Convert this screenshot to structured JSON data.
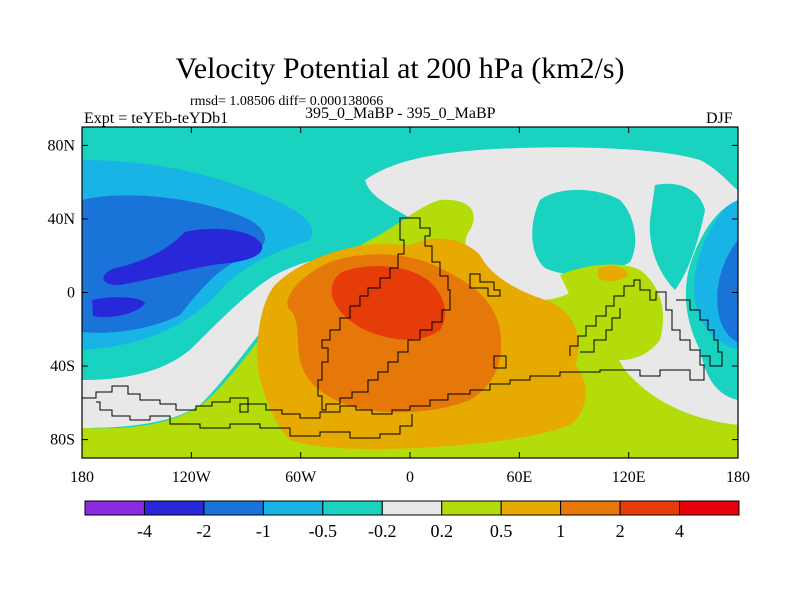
{
  "chart_data": {
    "type": "filled-contour-map",
    "title": "Velocity Potential at 200 hPa (km2/s)",
    "stats": "rmsd= 1.08506 diff= 0.000138066",
    "experiment": "Expt = teYEb-teYDb1",
    "period": "395_0_MaBP - 395_0_MaBP",
    "season": "DJF",
    "xticks": [
      {
        "lon": -180,
        "label": "180"
      },
      {
        "lon": -120,
        "label": "120W"
      },
      {
        "lon": -60,
        "label": "60W"
      },
      {
        "lon": 0,
        "label": "0"
      },
      {
        "lon": 60,
        "label": "60E"
      },
      {
        "lon": 120,
        "label": "120E"
      },
      {
        "lon": 180,
        "label": "180"
      }
    ],
    "yticks": [
      {
        "lat": 80,
        "label": "80N"
      },
      {
        "lat": 40,
        "label": "40N"
      },
      {
        "lat": 0,
        "label": "0"
      },
      {
        "lat": -40,
        "label": "40S"
      },
      {
        "lat": -80,
        "label": "80S"
      }
    ],
    "xlim": [
      -180,
      180
    ],
    "ylim": [
      -90,
      90
    ],
    "colorbar": {
      "levels": [
        "-4",
        "-2",
        "-1",
        "-0.5",
        "-0.2",
        "0.2",
        "0.5",
        "1",
        "2",
        "4"
      ],
      "colors": [
        "#8a2be2",
        "#2828d8",
        "#1a73d8",
        "#19b4e6",
        "#19d2c0",
        "#e8e8e8",
        "#b4dc0a",
        "#e6aa00",
        "#e6780a",
        "#e63c0a",
        "#e6000a"
      ]
    },
    "regions": [
      {
        "name": "weak-positive-band",
        "level": "0.2 to 0.5"
      },
      {
        "name": "moderate-positive-area",
        "level": "0.5 to 1"
      },
      {
        "name": "strong-positive-area",
        "level": "1 to 2"
      },
      {
        "name": "max-positive-core",
        "level": "2 to 4"
      },
      {
        "name": "negative-area-north-pacific",
        "level": "-1 to -0.5"
      },
      {
        "name": "min-negative-core",
        "level": "-4 to -2"
      }
    ]
  }
}
